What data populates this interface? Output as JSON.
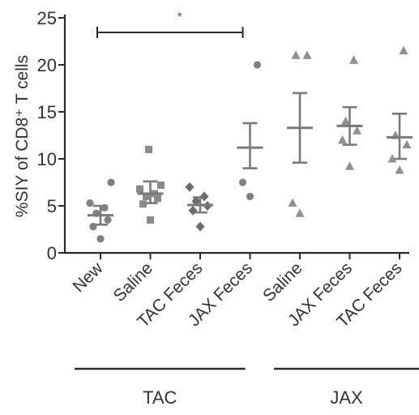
{
  "chart_data": {
    "type": "scatter",
    "ylabel": "%SIY of CD8⁺ T cells",
    "ylim": [
      0,
      25
    ],
    "yticks": [
      0,
      5,
      10,
      15,
      20,
      25
    ],
    "categories": [
      "New",
      "Saline",
      "TAC Feces",
      "JAX Feces",
      "Saline",
      "JAX Feces",
      "TAC Feces"
    ],
    "groups": [
      {
        "label": "TAC",
        "category_indices": [
          0,
          1,
          2,
          3
        ]
      },
      {
        "label": "JAX",
        "category_indices": [
          4,
          5,
          6
        ]
      }
    ],
    "series": [
      {
        "category": "New",
        "marker": "circle",
        "mean": 4.0,
        "error": [
          3.0,
          5.0
        ],
        "points": [
          1.5,
          2.8,
          3.5,
          4.2,
          4.8,
          5.3,
          7.5
        ]
      },
      {
        "category": "Saline",
        "marker": "square",
        "mean": 6.3,
        "error": [
          5.3,
          7.6
        ],
        "points": [
          3.5,
          5.2,
          5.8,
          6.0,
          6.3,
          6.8,
          7.2,
          11.0
        ]
      },
      {
        "category": "TAC Feces",
        "marker": "diamond",
        "mean": 5.1,
        "error": [
          4.3,
          5.9
        ],
        "points": [
          2.8,
          4.5,
          5.0,
          5.5,
          6.0,
          7.0
        ]
      },
      {
        "category": "JAX Feces",
        "marker": "circle",
        "mean": 11.2,
        "error": [
          9.0,
          13.8
        ],
        "points": [
          6.0,
          7.5,
          20.0
        ]
      },
      {
        "category": "Saline",
        "marker": "triangle",
        "mean": 13.3,
        "error": [
          9.6,
          17.0
        ],
        "points": [
          4.2,
          5.3,
          21.0,
          21.0
        ]
      },
      {
        "category": "JAX Feces",
        "marker": "triangle",
        "mean": 13.5,
        "error": [
          11.5,
          15.5
        ],
        "points": [
          9.2,
          12.0,
          13.0,
          14.0,
          20.5
        ]
      },
      {
        "category": "TAC Feces",
        "marker": "triangle",
        "mean": 12.3,
        "error": [
          10.0,
          14.8
        ],
        "points": [
          8.8,
          10.0,
          11.5,
          12.5,
          21.5
        ]
      }
    ],
    "significance": [
      {
        "from_index": 0,
        "to_index": 3,
        "label": "*"
      }
    ],
    "grid": false
  }
}
